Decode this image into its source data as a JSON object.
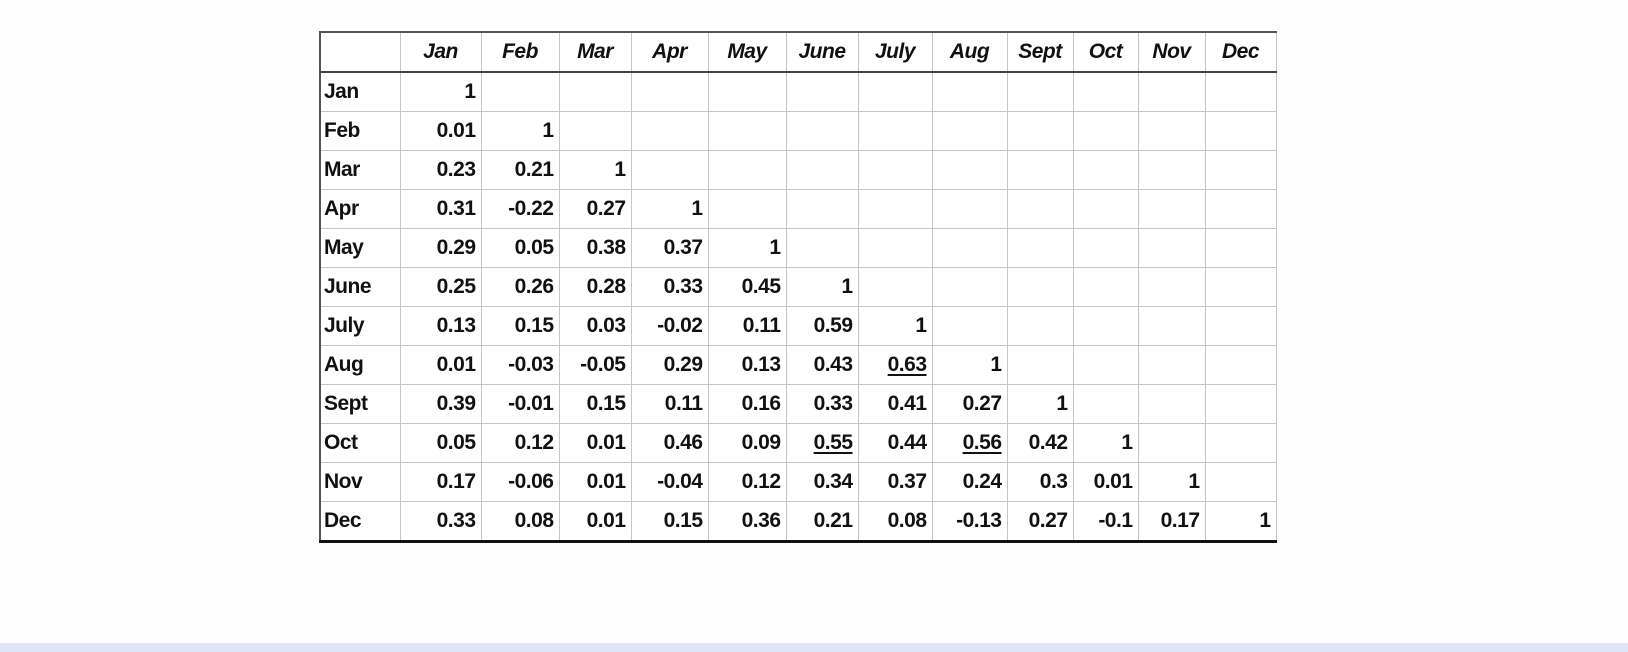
{
  "table": {
    "corner": "",
    "columns": [
      "Jan",
      "Feb",
      "Mar",
      "Apr",
      "May",
      "June",
      "July",
      "Aug",
      "Sept",
      "Oct",
      "Nov",
      "Dec"
    ],
    "rows": [
      {
        "label": "Jan",
        "values": [
          "1"
        ]
      },
      {
        "label": "Feb",
        "values": [
          "0.01",
          "1"
        ]
      },
      {
        "label": "Mar",
        "values": [
          "0.23",
          "0.21",
          "1"
        ]
      },
      {
        "label": "Apr",
        "values": [
          "0.31",
          "-0.22",
          "0.27",
          "1"
        ]
      },
      {
        "label": "May",
        "values": [
          "0.29",
          "0.05",
          "0.38",
          "0.37",
          "1"
        ]
      },
      {
        "label": "June",
        "values": [
          "0.25",
          "0.26",
          "0.28",
          "0.33",
          "0.45",
          "1"
        ]
      },
      {
        "label": "July",
        "values": [
          "0.13",
          "0.15",
          "0.03",
          "-0.02",
          "0.11",
          "0.59",
          "1"
        ]
      },
      {
        "label": "Aug",
        "values": [
          "0.01",
          "-0.03",
          "-0.05",
          "0.29",
          "0.13",
          "0.43",
          "0.63",
          "1"
        ]
      },
      {
        "label": "Sept",
        "values": [
          "0.39",
          "-0.01",
          "0.15",
          "0.11",
          "0.16",
          "0.33",
          "0.41",
          "0.27",
          "1"
        ]
      },
      {
        "label": "Oct",
        "values": [
          "0.05",
          "0.12",
          "0.01",
          "0.46",
          "0.09",
          "0.55",
          "0.44",
          "0.56",
          "0.42",
          "1"
        ]
      },
      {
        "label": "Nov",
        "values": [
          "0.17",
          "-0.06",
          "0.01",
          "-0.04",
          "0.12",
          "0.34",
          "0.37",
          "0.24",
          "0.3",
          "0.01",
          "1"
        ]
      },
      {
        "label": "Dec",
        "values": [
          "0.33",
          "0.08",
          "0.01",
          "0.15",
          "0.36",
          "0.21",
          "0.08",
          "-0.13",
          "0.27",
          "-0.1",
          "0.17",
          "1"
        ]
      }
    ],
    "underlined_cells": [
      {
        "row": "Aug",
        "column": "July"
      },
      {
        "row": "Oct",
        "column": "June"
      },
      {
        "row": "Oct",
        "column": "Aug"
      }
    ]
  },
  "colors": {
    "band": "#dfe5f5",
    "grid": "#c6c6c6"
  }
}
